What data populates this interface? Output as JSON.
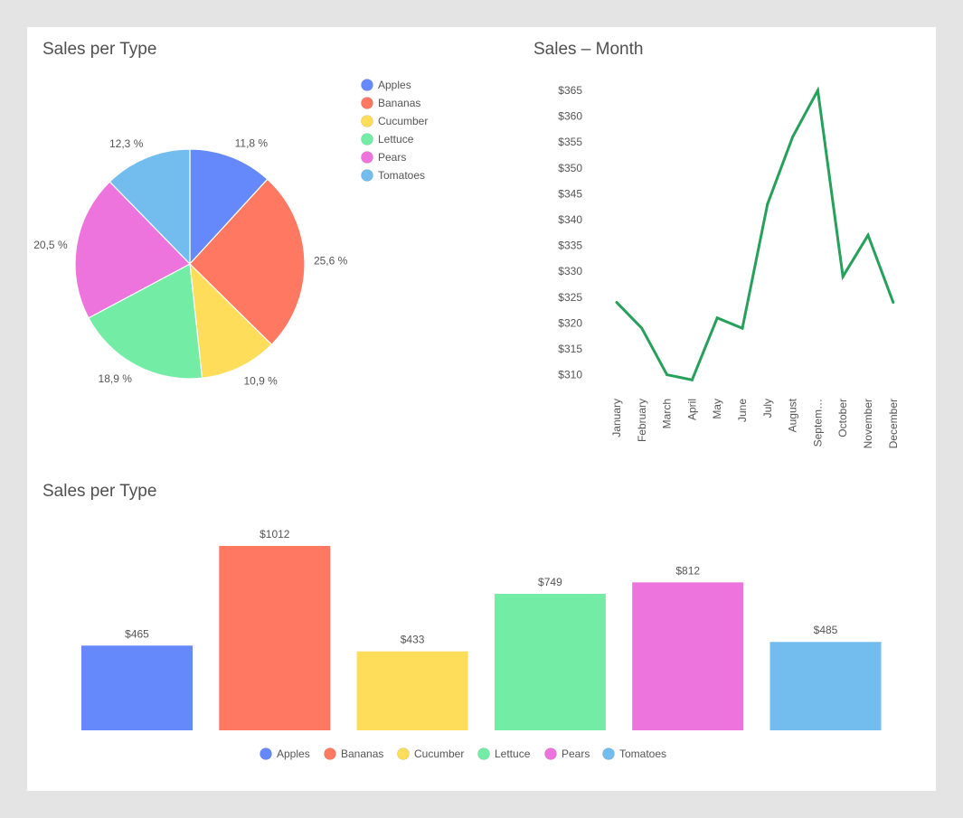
{
  "colors": {
    "Apples": "#6589fa",
    "Bananas": "#fe7862",
    "Cucumber": "#fedd5a",
    "Lettuce": "#73eca6",
    "Pears": "#ec74dc",
    "Tomatoes": "#72bdee",
    "line": "#26a05a",
    "background": "#e4e4e4",
    "card": "#ffffff"
  },
  "chart_data": [
    {
      "type": "pie",
      "title": "Sales per Type",
      "categories": [
        "Apples",
        "Bananas",
        "Cucumber",
        "Lettuce",
        "Pears",
        "Tomatoes"
      ],
      "values": [
        11.8,
        25.6,
        10.9,
        18.9,
        20.5,
        12.3
      ],
      "labels": [
        "11,8 %",
        "25,6 %",
        "10,9 %",
        "18,9 %",
        "20,5 %",
        "12,3 %"
      ],
      "legend": [
        "Apples",
        "Bananas",
        "Cucumber",
        "Lettuce",
        "Pears",
        "Tomatoes"
      ],
      "legend_position": "right"
    },
    {
      "type": "line",
      "title": "Sales – Month",
      "x": [
        "January",
        "February",
        "March",
        "April",
        "May",
        "June",
        "July",
        "August",
        "Septem…",
        "October",
        "November",
        "December"
      ],
      "values": [
        324,
        319,
        310,
        309,
        321,
        319,
        343,
        356,
        365,
        329,
        337,
        324
      ],
      "ylim": [
        308,
        366
      ],
      "yticks": [
        310,
        315,
        320,
        325,
        330,
        335,
        340,
        345,
        350,
        355,
        360,
        365
      ],
      "ytick_prefix": "$",
      "grid": false,
      "xlabel": "",
      "ylabel": ""
    },
    {
      "type": "bar",
      "title": "Sales per Type",
      "categories": [
        "Apples",
        "Bananas",
        "Cucumber",
        "Lettuce",
        "Pears",
        "Tomatoes"
      ],
      "values": [
        465,
        1012,
        433,
        749,
        812,
        485
      ],
      "value_labels": [
        "$465",
        "$1012",
        "$433",
        "$749",
        "$812",
        "$485"
      ],
      "ylim": [
        0,
        1012
      ],
      "legend": [
        "Apples",
        "Bananas",
        "Cucumber",
        "Lettuce",
        "Pears",
        "Tomatoes"
      ],
      "legend_position": "bottom",
      "xlabel": "",
      "ylabel": ""
    }
  ]
}
